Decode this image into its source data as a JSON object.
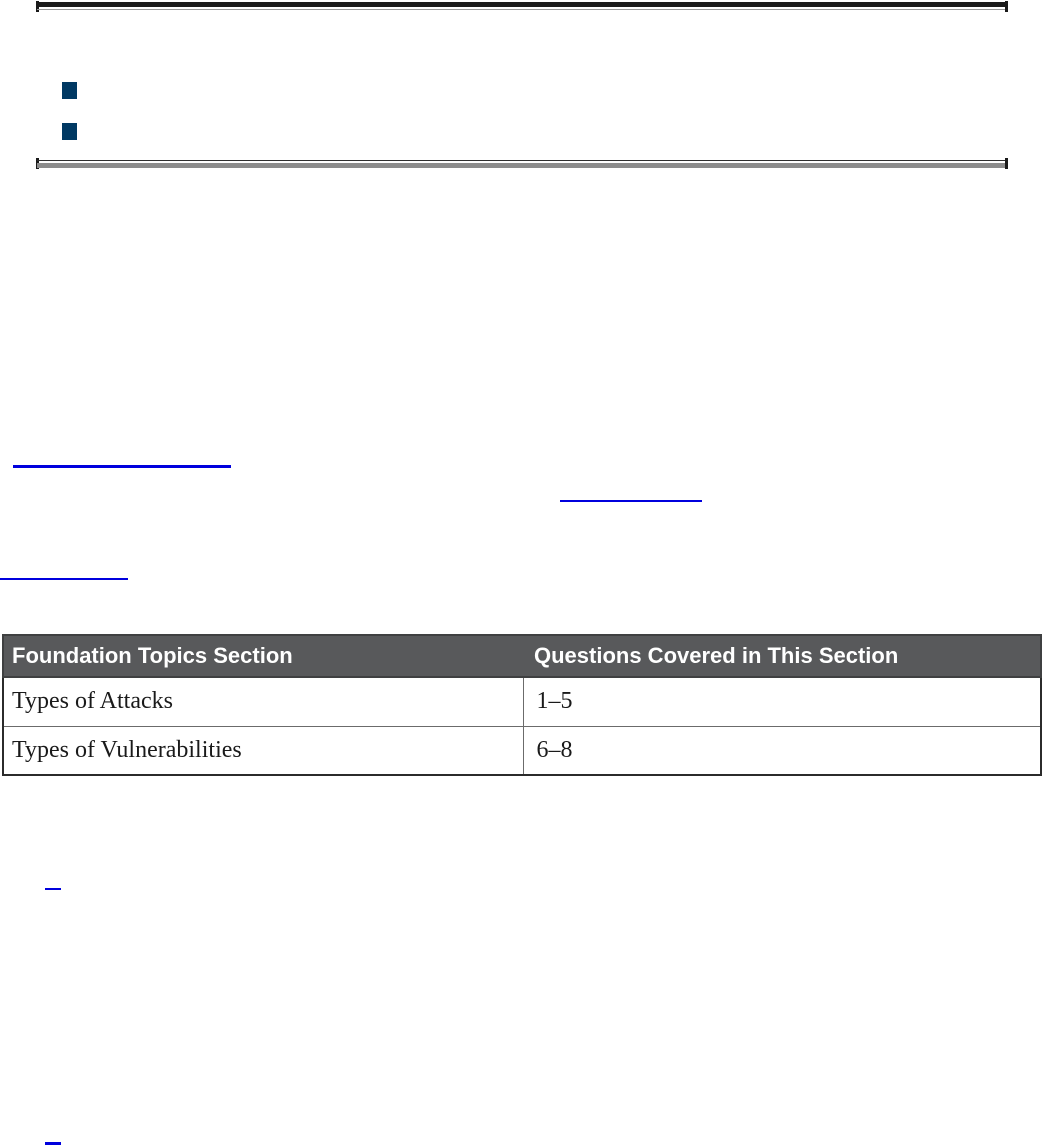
{
  "page": {
    "kind": "ebook-document-page",
    "background": "#FFFFFF"
  },
  "colors": {
    "bullet_square": "#003963",
    "link_underline": "#0000DD",
    "link_underline_dark": "#000099",
    "rule_dark": "#1A1A1A",
    "rule_gray": "#8C8C8C",
    "table_header_bg": "#58595B",
    "table_header_text": "#FFFFFF",
    "table_body_text": "#1A1A1A"
  },
  "callout_box": {
    "bullet_items_visible": 2
  },
  "links": {
    "count": 5,
    "note": ""
  },
  "table": {
    "headers": [
      "Foundation Topics Section",
      "Questions Covered in This Section"
    ],
    "rows": [
      [
        "Types of Attacks",
        "1–5"
      ],
      [
        "Types of Vulnerabilities",
        "6–8"
      ]
    ]
  }
}
